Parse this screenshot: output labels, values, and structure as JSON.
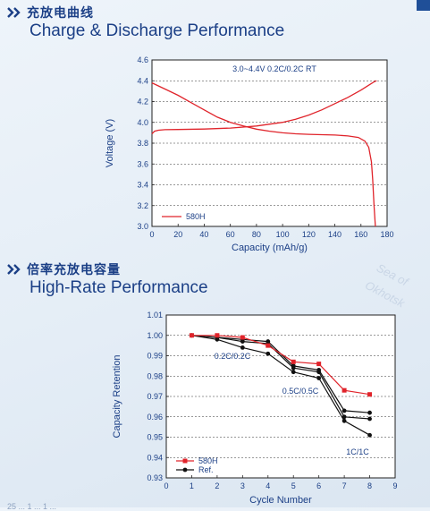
{
  "sections": [
    {
      "cn_title": "充放电曲线",
      "en_title": "Charge & Discharge Performance"
    },
    {
      "cn_title": "倍率充放电容量",
      "en_title": "High-Rate Performance"
    }
  ],
  "watermark": {
    "line1": "Sea of",
    "line2": "Okhotsk"
  },
  "colors": {
    "brand_blue": "#1b3f86",
    "series_red": "#e0242b",
    "series_black": "#111111",
    "plot_bg": "#ffffff"
  },
  "chart_data": [
    {
      "type": "line",
      "xlabel": "Capacity (mAh/g)",
      "ylabel": "Voltage (V)",
      "xlim": [
        0,
        180
      ],
      "ylim": [
        3.0,
        4.6
      ],
      "xticks": [
        "0",
        "20",
        "40",
        "60",
        "80",
        "100",
        "120",
        "140",
        "160",
        "180"
      ],
      "yticks": [
        "3.0",
        "3.2",
        "3.4",
        "3.6",
        "3.8",
        "4.0",
        "4.2",
        "4.4",
        "4.6"
      ],
      "grid": "horizontal-dashed",
      "annotation": "3.0~4.4V  0.2C/0.2C  RT",
      "legend": {
        "position": "bottom-left",
        "entries": [
          "580H"
        ]
      },
      "series": [
        {
          "name": "580H",
          "color": "#e0242b",
          "charge": [
            [
              0,
              3.89
            ],
            [
              2,
              3.915
            ],
            [
              5,
              3.925
            ],
            [
              10,
              3.93
            ],
            [
              20,
              3.932
            ],
            [
              40,
              3.936
            ],
            [
              60,
              3.945
            ],
            [
              80,
              3.965
            ],
            [
              100,
              4.0
            ],
            [
              110,
              4.03
            ],
            [
              120,
              4.07
            ],
            [
              130,
              4.12
            ],
            [
              140,
              4.18
            ],
            [
              150,
              4.24
            ],
            [
              160,
              4.31
            ],
            [
              165,
              4.35
            ],
            [
              170,
              4.39
            ],
            [
              172,
              4.4
            ]
          ],
          "discharge": [
            [
              0,
              4.38
            ],
            [
              10,
              4.32
            ],
            [
              20,
              4.26
            ],
            [
              30,
              4.19
            ],
            [
              40,
              4.12
            ],
            [
              50,
              4.05
            ],
            [
              60,
              4.0
            ],
            [
              70,
              3.965
            ],
            [
              80,
              3.935
            ],
            [
              90,
              3.915
            ],
            [
              100,
              3.9
            ],
            [
              110,
              3.89
            ],
            [
              120,
              3.885
            ],
            [
              130,
              3.882
            ],
            [
              140,
              3.878
            ],
            [
              150,
              3.87
            ],
            [
              158,
              3.855
            ],
            [
              163,
              3.82
            ],
            [
              166,
              3.76
            ],
            [
              168,
              3.62
            ],
            [
              169,
              3.45
            ],
            [
              170,
              3.2
            ],
            [
              171,
              3.0
            ]
          ]
        }
      ]
    },
    {
      "type": "line",
      "xlabel": "Cycle Number",
      "ylabel": "Capacity Retention",
      "xlim": [
        0,
        9
      ],
      "ylim": [
        0.93,
        1.01
      ],
      "xticks": [
        "0",
        "1",
        "2",
        "3",
        "4",
        "5",
        "6",
        "7",
        "8",
        "9"
      ],
      "yticks": [
        "0.93",
        "0.94",
        "0.95",
        "0.96",
        "0.97",
        "0.98",
        "0.99",
        "1.00",
        "1.01"
      ],
      "grid": "horizontal-dashed",
      "annotations": [
        "0.2C/0.2C",
        "0.5C/0.5C",
        "1C/1C"
      ],
      "legend": {
        "position": "bottom-left",
        "entries": [
          "580H",
          "Ref."
        ]
      },
      "series": [
        {
          "name": "580H",
          "color": "#e0242b",
          "marker": "square",
          "x": [
            1,
            2,
            3,
            4,
            5,
            6,
            7,
            8
          ],
          "y": [
            1.0,
            1.0,
            0.999,
            0.995,
            0.987,
            0.986,
            0.973,
            0.971
          ]
        },
        {
          "name": "Ref.",
          "color": "#111111",
          "marker": "circle",
          "x": [
            1,
            2,
            3,
            4,
            5,
            6,
            7,
            8
          ],
          "y": [
            1.0,
            0.999,
            0.998,
            0.997,
            0.985,
            0.983,
            0.963,
            0.962
          ]
        },
        {
          "name": "Ref.",
          "color": "#111111",
          "marker": "circle",
          "x": [
            1,
            2,
            3,
            4,
            5,
            6,
            7,
            8
          ],
          "y": [
            1.0,
            0.999,
            0.997,
            0.996,
            0.984,
            0.982,
            0.96,
            0.959
          ]
        },
        {
          "name": "Ref.",
          "color": "#111111",
          "marker": "circle",
          "x": [
            1,
            2,
            3,
            4,
            5,
            6,
            7,
            8
          ],
          "y": [
            1.0,
            0.998,
            0.994,
            0.991,
            0.982,
            0.979,
            0.958,
            0.951
          ]
        }
      ]
    }
  ],
  "footer": "25 ... 1 ... 1 ..."
}
